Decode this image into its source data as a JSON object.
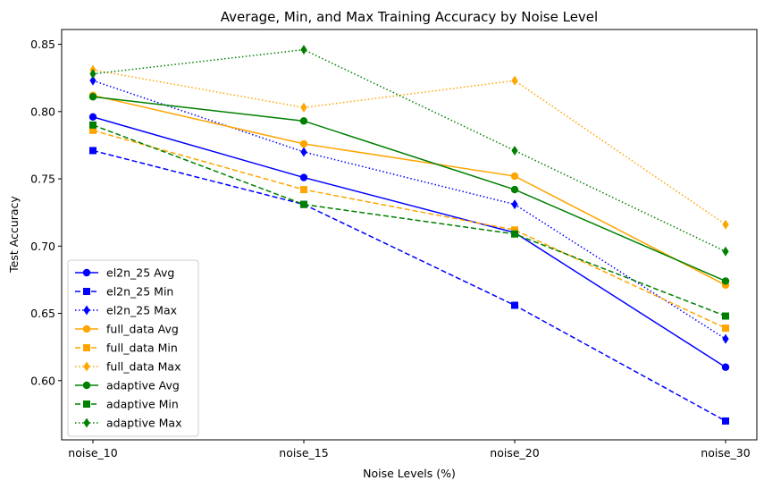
{
  "chart_data": {
    "type": "line",
    "title": "Average, Min, and Max Training Accuracy by Noise Level",
    "xlabel": "Noise Levels (%)",
    "ylabel": "Test Accuracy",
    "categories": [
      "noise_10",
      "noise_15",
      "noise_20",
      "noise_30"
    ],
    "ylim": [
      0.556,
      0.861
    ],
    "yticks": [
      0.6,
      0.65,
      0.7,
      0.75,
      0.8,
      0.85
    ],
    "ytick_labels": [
      "0.60",
      "0.65",
      "0.70",
      "0.75",
      "0.80",
      "0.85"
    ],
    "grid": false,
    "legend_position": "lower-left",
    "series": [
      {
        "name": "el2n_25 Avg",
        "color": "#0000ff",
        "linestyle": "solid",
        "marker": "circle",
        "values": [
          0.796,
          0.751,
          0.71,
          0.61
        ]
      },
      {
        "name": "el2n_25 Min",
        "color": "#0000ff",
        "linestyle": "dashed",
        "marker": "square",
        "values": [
          0.771,
          0.731,
          0.656,
          0.57
        ]
      },
      {
        "name": "el2n_25 Max",
        "color": "#0000ff",
        "linestyle": "dotted",
        "marker": "diamond",
        "values": [
          0.823,
          0.77,
          0.731,
          0.631
        ]
      },
      {
        "name": "full_data Avg",
        "color": "#ffa500",
        "linestyle": "solid",
        "marker": "circle",
        "values": [
          0.812,
          0.776,
          0.752,
          0.671
        ]
      },
      {
        "name": "full_data Min",
        "color": "#ffa500",
        "linestyle": "dashed",
        "marker": "square",
        "values": [
          0.786,
          0.742,
          0.712,
          0.639
        ]
      },
      {
        "name": "full_data Max",
        "color": "#ffa500",
        "linestyle": "dotted",
        "marker": "diamond",
        "values": [
          0.831,
          0.803,
          0.823,
          0.716
        ]
      },
      {
        "name": "adaptive Avg",
        "color": "#008000",
        "linestyle": "solid",
        "marker": "circle",
        "values": [
          0.811,
          0.793,
          0.742,
          0.674
        ]
      },
      {
        "name": "adaptive Min",
        "color": "#008000",
        "linestyle": "dashed",
        "marker": "square",
        "values": [
          0.79,
          0.731,
          0.709,
          0.648
        ]
      },
      {
        "name": "adaptive Max",
        "color": "#008000",
        "linestyle": "dotted",
        "marker": "diamond",
        "values": [
          0.828,
          0.846,
          0.771,
          0.696
        ]
      }
    ]
  }
}
